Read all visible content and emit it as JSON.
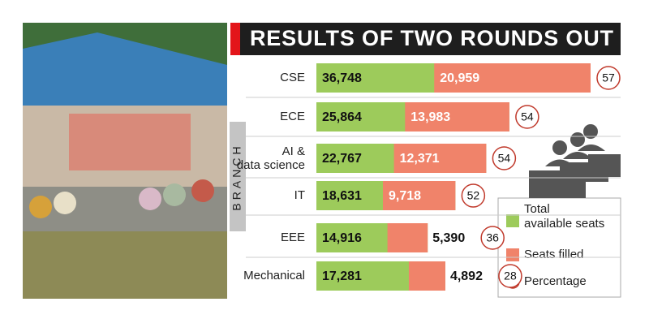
{
  "chart_data": {
    "type": "bar",
    "title": "RESULTS OF TWO ROUNDS OUT",
    "y_label": "BRANCH",
    "categories": [
      "CSE",
      "ECE",
      "AI & data science",
      "IT",
      "EEE",
      "Mechanical"
    ],
    "series": [
      {
        "name": "Total available seats",
        "color": "#9dcb5b",
        "values": [
          36748,
          25864,
          22767,
          18631,
          14916,
          17281
        ],
        "value_labels": [
          "36,748",
          "25,864",
          "22,767",
          "18,631",
          "14,916",
          "17,281"
        ]
      },
      {
        "name": "Seats filled",
        "color": "#f0836a",
        "values": [
          20959,
          13983,
          12371,
          9718,
          5390,
          4892
        ],
        "value_labels": [
          "20,959",
          "13,983",
          "12,371",
          "9,718",
          "5,390",
          "4,892"
        ]
      },
      {
        "name": "Percentage",
        "color": "#c0392b",
        "values": [
          57,
          54,
          54,
          52,
          36,
          28
        ]
      }
    ]
  }
}
